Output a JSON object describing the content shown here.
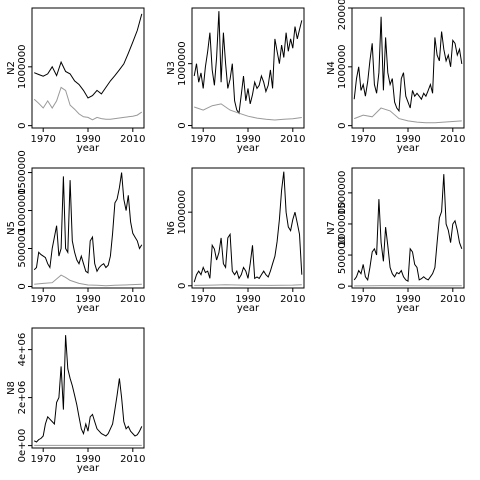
{
  "chart_data": [
    {
      "type": "line",
      "ylabel": "N2",
      "xlabel": "year",
      "xlim": [
        1965,
        2015
      ],
      "ylim": [
        -40000,
        2000000
      ],
      "yticks": [
        0,
        1000000
      ],
      "xticks": [
        1970,
        1990,
        2010
      ],
      "series": [
        {
          "x": [
            1966,
            1968,
            1970,
            1972,
            1974,
            1976,
            1978,
            1980,
            1982,
            1984,
            1986,
            1988,
            1990,
            1992,
            1994,
            1996,
            1998,
            2000,
            2002,
            2004,
            2006,
            2008,
            2010,
            2012,
            2014
          ],
          "values": [
            900000,
            870000,
            840000,
            880000,
            1000000,
            850000,
            1080000,
            920000,
            880000,
            760000,
            700000,
            600000,
            470000,
            510000,
            600000,
            540000,
            650000,
            760000,
            850000,
            950000,
            1050000,
            1230000,
            1420000,
            1620000,
            1900000
          ]
        },
        {
          "x": [
            1966,
            1968,
            1970,
            1972,
            1974,
            1976,
            1978,
            1980,
            1982,
            1984,
            1986,
            1988,
            1990,
            1992,
            1994,
            1996,
            1998,
            2000,
            2002,
            2004,
            2006,
            2008,
            2010,
            2012,
            2014
          ],
          "values": [
            450000,
            380000,
            300000,
            420000,
            300000,
            420000,
            650000,
            600000,
            350000,
            280000,
            200000,
            150000,
            140000,
            100000,
            140000,
            120000,
            110000,
            110000,
            120000,
            130000,
            140000,
            150000,
            160000,
            180000,
            230000
          ],
          "color": "#999999"
        }
      ]
    },
    {
      "type": "line",
      "ylabel": "N3",
      "xlabel": "year",
      "xlim": [
        1965,
        2015
      ],
      "ylim": [
        -40000,
        1900000
      ],
      "yticks": [
        0,
        1000000
      ],
      "xticks": [
        1970,
        1990,
        2010
      ],
      "series": [
        {
          "x": [
            1966,
            1967,
            1968,
            1969,
            1970,
            1971,
            1972,
            1973,
            1974,
            1975,
            1976,
            1977,
            1978,
            1979,
            1980,
            1981,
            1982,
            1983,
            1984,
            1985,
            1986,
            1987,
            1988,
            1989,
            1990,
            1991,
            1992,
            1993,
            1994,
            1995,
            1996,
            1997,
            1998,
            1999,
            2000,
            2001,
            2002,
            2003,
            2004,
            2005,
            2006,
            2007,
            2008,
            2009,
            2010,
            2011,
            2012,
            2013,
            2014
          ],
          "values": [
            800000,
            1000000,
            700000,
            850000,
            600000,
            950000,
            1200000,
            1500000,
            900000,
            650000,
            1100000,
            1850000,
            700000,
            1500000,
            1000000,
            600000,
            750000,
            1000000,
            400000,
            250000,
            200000,
            500000,
            800000,
            400000,
            600000,
            350000,
            500000,
            700000,
            600000,
            650000,
            800000,
            700000,
            550000,
            650000,
            900000,
            600000,
            1400000,
            1200000,
            1000000,
            1300000,
            1100000,
            1500000,
            1200000,
            1400000,
            1250000,
            1600000,
            1400000,
            1550000,
            1700000
          ]
        },
        {
          "x": [
            1966,
            1970,
            1974,
            1978,
            1982,
            1986,
            1990,
            1994,
            1998,
            2002,
            2006,
            2010,
            2014
          ],
          "values": [
            300000,
            250000,
            320000,
            350000,
            250000,
            200000,
            150000,
            120000,
            100000,
            90000,
            100000,
            110000,
            130000
          ],
          "color": "#999999"
        }
      ]
    },
    {
      "type": "line",
      "ylabel": "N4",
      "xlabel": "year",
      "xlim": [
        1965,
        2015
      ],
      "ylim": [
        -40000,
        2000000
      ],
      "yticks": [
        0,
        1000000,
        2000000
      ],
      "xticks": [
        1970,
        1990,
        2010
      ],
      "series": [
        {
          "x": [
            1966,
            1967,
            1968,
            1969,
            1970,
            1971,
            1972,
            1973,
            1974,
            1975,
            1976,
            1977,
            1978,
            1979,
            1980,
            1981,
            1982,
            1983,
            1984,
            1985,
            1986,
            1987,
            1988,
            1989,
            1990,
            1991,
            1992,
            1993,
            1994,
            1995,
            1996,
            1997,
            1998,
            1999,
            2000,
            2001,
            2002,
            2003,
            2004,
            2005,
            2006,
            2007,
            2008,
            2009,
            2010,
            2011,
            2012,
            2013,
            2014
          ],
          "values": [
            450000,
            800000,
            1000000,
            600000,
            700000,
            500000,
            750000,
            1100000,
            1400000,
            700000,
            550000,
            900000,
            1850000,
            600000,
            1500000,
            900000,
            700000,
            800000,
            400000,
            300000,
            250000,
            800000,
            900000,
            500000,
            400000,
            300000,
            600000,
            500000,
            550000,
            500000,
            450000,
            550000,
            500000,
            600000,
            700000,
            550000,
            1500000,
            1200000,
            1100000,
            1600000,
            1300000,
            1100000,
            1200000,
            1000000,
            1450000,
            1400000,
            1200000,
            1300000,
            1050000
          ]
        },
        {
          "x": [
            1966,
            1970,
            1974,
            1978,
            1982,
            1986,
            1990,
            1994,
            1998,
            2002,
            2006,
            2010,
            2014
          ],
          "values": [
            120000,
            180000,
            150000,
            300000,
            250000,
            120000,
            80000,
            60000,
            50000,
            50000,
            60000,
            70000,
            80000
          ],
          "color": "#999999"
        }
      ]
    },
    {
      "type": "line",
      "ylabel": "N5",
      "xlabel": "year",
      "xlim": [
        1965,
        2015
      ],
      "ylim": [
        -20000,
        1560000
      ],
      "yticks": [
        0,
        500000,
        1000000,
        1500000
      ],
      "xticks": [
        1970,
        1990,
        2010
      ],
      "series": [
        {
          "x": [
            1966,
            1967,
            1968,
            1969,
            1970,
            1971,
            1972,
            1973,
            1974,
            1975,
            1976,
            1977,
            1978,
            1979,
            1980,
            1981,
            1982,
            1983,
            1984,
            1985,
            1986,
            1987,
            1988,
            1989,
            1990,
            1991,
            1992,
            1993,
            1994,
            1995,
            1996,
            1997,
            1998,
            1999,
            2000,
            2001,
            2002,
            2003,
            2004,
            2005,
            2006,
            2007,
            2008,
            2009,
            2010,
            2011,
            2012,
            2013,
            2014
          ],
          "values": [
            220000,
            250000,
            450000,
            420000,
            400000,
            380000,
            300000,
            250000,
            500000,
            650000,
            800000,
            400000,
            500000,
            1450000,
            500000,
            450000,
            1400000,
            600000,
            450000,
            350000,
            300000,
            400000,
            300000,
            200000,
            180000,
            600000,
            650000,
            300000,
            200000,
            250000,
            280000,
            300000,
            250000,
            280000,
            400000,
            700000,
            1100000,
            1150000,
            1300000,
            1500000,
            1150000,
            1000000,
            1200000,
            850000,
            700000,
            650000,
            600000,
            500000,
            550000
          ]
        },
        {
          "x": [
            1966,
            1970,
            1974,
            1978,
            1980,
            1982,
            1986,
            1990,
            1994,
            1998,
            2002,
            2006,
            2010,
            2014
          ],
          "values": [
            30000,
            40000,
            50000,
            150000,
            120000,
            80000,
            40000,
            20000,
            15000,
            10000,
            15000,
            20000,
            25000,
            30000
          ],
          "color": "#999999"
        }
      ]
    },
    {
      "type": "line",
      "ylabel": "N6",
      "xlabel": "year",
      "xlim": [
        1965,
        2015
      ],
      "ylim": [
        -30000,
        1600000
      ],
      "yticks": [
        0,
        1000000
      ],
      "xticks": [
        1970,
        1990,
        2010
      ],
      "series": [
        {
          "x": [
            1966,
            1967,
            1968,
            1969,
            1970,
            1971,
            1972,
            1973,
            1974,
            1975,
            1976,
            1977,
            1978,
            1979,
            1980,
            1981,
            1982,
            1983,
            1984,
            1985,
            1986,
            1987,
            1988,
            1989,
            1990,
            1991,
            1992,
            1993,
            1994,
            1995,
            1996,
            1997,
            1998,
            1999,
            2000,
            2001,
            2002,
            2003,
            2004,
            2005,
            2006,
            2007,
            2008,
            2009,
            2010,
            2011,
            2012,
            2013,
            2014
          ],
          "values": [
            50000,
            150000,
            200000,
            150000,
            250000,
            180000,
            200000,
            100000,
            550000,
            500000,
            350000,
            450000,
            650000,
            300000,
            250000,
            650000,
            700000,
            200000,
            150000,
            200000,
            100000,
            150000,
            250000,
            200000,
            100000,
            300000,
            550000,
            100000,
            120000,
            100000,
            150000,
            200000,
            150000,
            120000,
            200000,
            300000,
            400000,
            600000,
            900000,
            1300000,
            1550000,
            1000000,
            800000,
            750000,
            900000,
            1000000,
            850000,
            700000,
            150000
          ]
        },
        {
          "x": [
            1966,
            1974,
            1980,
            1990,
            2000,
            2010,
            2014
          ],
          "values": [
            5000,
            10000,
            15000,
            8000,
            5000,
            10000,
            15000
          ],
          "color": "#999999"
        }
      ]
    },
    {
      "type": "line",
      "ylabel": "N7",
      "xlabel": "year",
      "xlim": [
        1965,
        2015
      ],
      "ylim": [
        -30000,
        1900000
      ],
      "yticks": [
        0,
        500000,
        1000000,
        1500000
      ],
      "xticks": [
        1970,
        1990,
        2010
      ],
      "series": [
        {
          "x": [
            1966,
            1967,
            1968,
            1969,
            1970,
            1971,
            1972,
            1973,
            1974,
            1975,
            1976,
            1977,
            1978,
            1979,
            1980,
            1981,
            1982,
            1983,
            1984,
            1985,
            1986,
            1987,
            1988,
            1989,
            1990,
            1991,
            1992,
            1993,
            1994,
            1995,
            1996,
            1997,
            1998,
            1999,
            2000,
            2001,
            2002,
            2003,
            2004,
            2005,
            2006,
            2007,
            2008,
            2009,
            2010,
            2011,
            2012,
            2013,
            2014
          ],
          "values": [
            100000,
            150000,
            250000,
            200000,
            350000,
            150000,
            100000,
            300000,
            550000,
            600000,
            500000,
            1400000,
            700000,
            400000,
            950000,
            650000,
            300000,
            200000,
            150000,
            220000,
            200000,
            250000,
            150000,
            100000,
            80000,
            600000,
            550000,
            350000,
            300000,
            100000,
            120000,
            150000,
            120000,
            100000,
            150000,
            200000,
            300000,
            700000,
            1100000,
            1200000,
            1800000,
            1000000,
            900000,
            700000,
            1000000,
            1050000,
            900000,
            700000,
            600000
          ]
        },
        {
          "x": [
            1966,
            1974,
            1980,
            1990,
            2000,
            2010,
            2014
          ],
          "values": [
            3000,
            5000,
            8000,
            5000,
            3000,
            5000,
            6000
          ],
          "color": "#999999"
        }
      ]
    },
    {
      "type": "line",
      "ylabel": "N8",
      "xlabel": "year",
      "xlim": [
        1965,
        2015
      ],
      "ylim": [
        -100000,
        4900000
      ],
      "yticks": [
        0,
        2000000,
        4000000
      ],
      "ytick_labels": [
        "0e+00",
        "2e+06",
        "4e+06"
      ],
      "xticks": [
        1970,
        1990,
        2010
      ],
      "series": [
        {
          "x": [
            1966,
            1967,
            1968,
            1969,
            1970,
            1971,
            1972,
            1973,
            1974,
            1975,
            1976,
            1977,
            1978,
            1979,
            1980,
            1981,
            1982,
            1983,
            1984,
            1985,
            1986,
            1987,
            1988,
            1989,
            1990,
            1991,
            1992,
            1993,
            1994,
            1995,
            1996,
            1997,
            1998,
            1999,
            2000,
            2001,
            2002,
            2003,
            2004,
            2005,
            2006,
            2007,
            2008,
            2009,
            2010,
            2011,
            2012,
            2013,
            2014
          ],
          "values": [
            200000,
            150000,
            250000,
            300000,
            400000,
            900000,
            1200000,
            1100000,
            1000000,
            900000,
            1800000,
            2000000,
            3300000,
            1500000,
            4600000,
            3200000,
            2800000,
            2500000,
            2100000,
            1700000,
            1200000,
            700000,
            500000,
            900000,
            600000,
            1200000,
            1300000,
            1000000,
            700000,
            600000,
            500000,
            450000,
            400000,
            500000,
            700000,
            900000,
            1500000,
            2100000,
            2800000,
            2000000,
            1000000,
            700000,
            800000,
            600000,
            500000,
            400000,
            450000,
            600000,
            800000
          ]
        },
        {
          "x": [
            1966,
            2014
          ],
          "values": [
            10000,
            10000
          ],
          "color": "#999999"
        }
      ]
    }
  ]
}
